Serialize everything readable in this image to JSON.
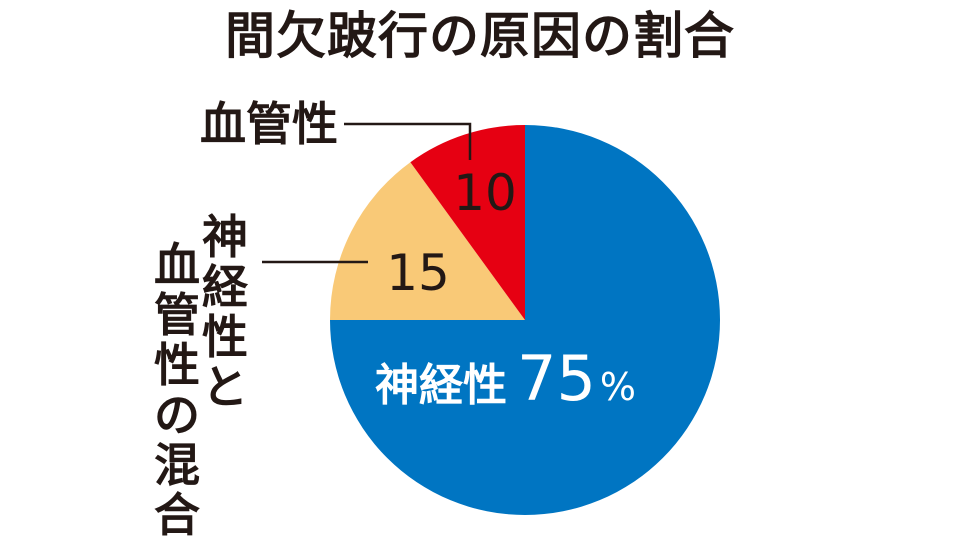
{
  "chart_data": {
    "type": "pie",
    "title": "間欠跛行の原因の割合",
    "categories": [
      "神経性",
      "神経性と血管性の混合",
      "血管性"
    ],
    "values": [
      75,
      15,
      10
    ],
    "colors": [
      "#0075c2",
      "#f9c977",
      "#e60012"
    ],
    "slice_labels": [
      "神経性",
      "神経性と\n血管性の混合",
      "血管性"
    ],
    "value_labels": [
      "75",
      "15",
      "10"
    ],
    "unit": "%"
  }
}
